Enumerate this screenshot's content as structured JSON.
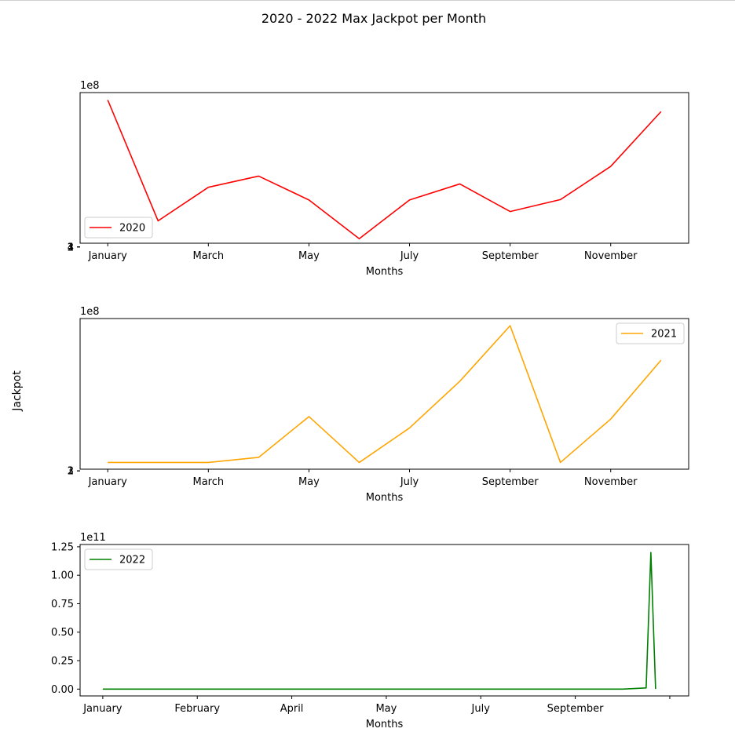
{
  "figure": {
    "title": "2020 - 2022 Max Jackpot per Month",
    "ylabel": "Jackpot"
  },
  "chart_data": [
    {
      "type": "line",
      "series": [
        {
          "name": "2020",
          "color": "#ff0000",
          "x": [
            1,
            2,
            3,
            4,
            5,
            6,
            7,
            8,
            9,
            10,
            11,
            12
          ],
          "values": [
            394000000.0,
            70000000.0,
            160000000.0,
            190000000.0,
            126000000.0,
            22000000.0,
            126000000.0,
            169000000.0,
            95000000.0,
            127000000.0,
            216000000.0,
            363000000.0
          ]
        }
      ],
      "xticks": [
        1,
        3,
        5,
        7,
        9,
        11
      ],
      "xticklabels": [
        "January",
        "March",
        "May",
        "July",
        "September",
        "November"
      ],
      "xlim": [
        0.45,
        12.55
      ],
      "yticks": [
        1,
        2,
        3,
        4
      ],
      "yticklabels": [
        "1",
        "2",
        "3",
        "4"
      ],
      "ylim": [
        10000000.0,
        414000000.0
      ],
      "offset_text": "1e8",
      "xlabel": "Months",
      "legend": "lower-left",
      "grid": false
    },
    {
      "type": "line",
      "series": [
        {
          "name": "2021",
          "color": "#ffa500",
          "x": [
            1,
            2,
            3,
            4,
            5,
            6,
            7,
            8,
            9,
            10,
            11,
            12
          ],
          "values": [
            20000000.0,
            20000000.0,
            20000000.0,
            32000000.0,
            129000000.0,
            20000000.0,
            102000000.0,
            213000000.0,
            345000000.0,
            20000000.0,
            123000000.0,
            263000000.0
          ]
        }
      ],
      "xticks": [
        1,
        3,
        5,
        7,
        9,
        11
      ],
      "xticklabels": [
        "January",
        "March",
        "May",
        "July",
        "September",
        "November"
      ],
      "xlim": [
        0.45,
        12.55
      ],
      "yticks": [
        1,
        2,
        3
      ],
      "yticklabels": [
        "1",
        "2",
        "3"
      ],
      "ylim": [
        4000000.0,
        362000000.0
      ],
      "offset_text": "1e8",
      "xlabel": "Months",
      "legend": "upper-right",
      "grid": false
    },
    {
      "type": "line",
      "series": [
        {
          "name": "2022",
          "color": "#008000",
          "x": [
            0,
            5,
            10,
            15,
            20,
            25,
            30,
            35,
            40,
            45,
            50,
            55,
            60,
            65,
            70,
            75,
            80,
            85,
            90,
            95,
            100,
            105,
            110,
            115,
            116,
            117
          ],
          "values": [
            0.0,
            0.0,
            0.0,
            0.0,
            0.0,
            0.0,
            0.0,
            0.0,
            0.0,
            0.0,
            0.0,
            0.0,
            0.0,
            0.0,
            0.0,
            0.0,
            0.0,
            0.0,
            0.0,
            0.0,
            0.0,
            0.0,
            0.0,
            1000000000.0,
            120000000000.0,
            100000000.0
          ]
        }
      ],
      "xticks": [
        0,
        20,
        40,
        60,
        80,
        100,
        120
      ],
      "xticklabels": [
        "January",
        "February",
        "April",
        "May",
        "July",
        "September",
        ""
      ],
      "xlim": [
        -4.8,
        124.0
      ],
      "yticks": [
        0.0,
        25000000000.0,
        50000000000.0,
        75000000000.0,
        100000000000.0,
        125000000000.0
      ],
      "yticklabels": [
        "0.00",
        "0.25",
        "0.50",
        "0.75",
        "1.00",
        "1.25"
      ],
      "ylim": [
        -6000000000.0,
        127000000000.0
      ],
      "offset_text": "1e11",
      "xlabel": "Months",
      "legend": "upper-left",
      "grid": false
    }
  ]
}
